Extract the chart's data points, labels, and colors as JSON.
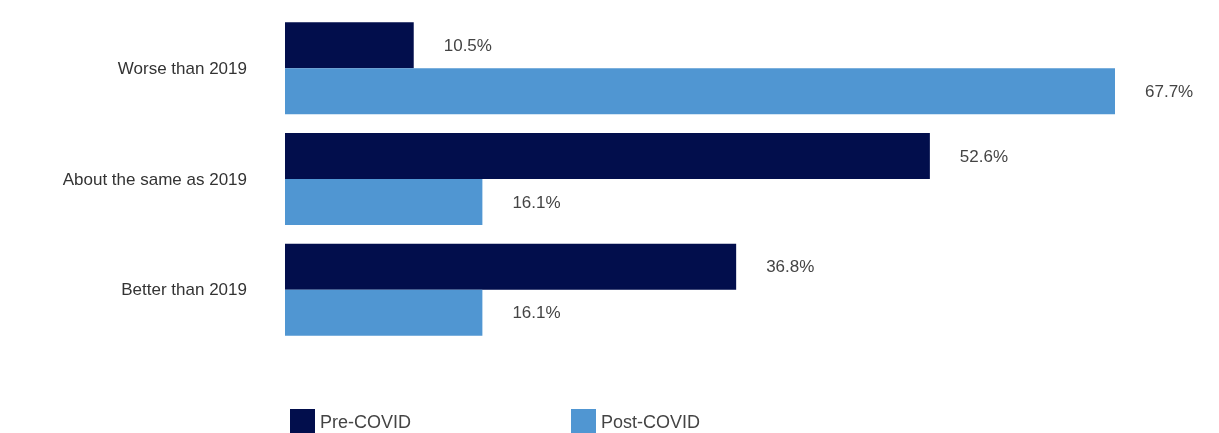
{
  "chart_data": {
    "type": "bar",
    "orientation": "horizontal",
    "categories": [
      "Worse than 2019",
      "About the same as 2019",
      "Better than 2019"
    ],
    "series": [
      {
        "name": "Pre-COVID",
        "color": "#020e4c",
        "values": [
          10.5,
          52.6,
          36.8
        ],
        "value_labels": [
          "10.5%",
          "52.6%",
          "36.8%"
        ]
      },
      {
        "name": "Post-COVID",
        "color": "#5096d2",
        "values": [
          67.7,
          16.1,
          16.1
        ],
        "value_labels": [
          "67.7%",
          "16.1%",
          "16.1%"
        ]
      }
    ],
    "legend": "bottom left"
  }
}
